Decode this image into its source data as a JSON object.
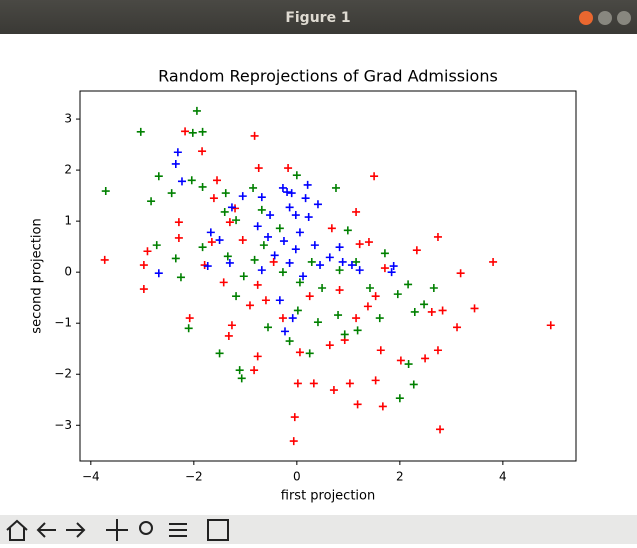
{
  "window": {
    "title": "Figure 1"
  },
  "chart_data": {
    "type": "scatter",
    "title": "Random Reprojections of Grad Admissions",
    "x_label": "first projection",
    "y_label": "second projection",
    "xlim": [
      -4.21,
      5.42
    ],
    "ylim": [
      -3.7,
      3.55
    ],
    "xticks": [
      {
        "value": -4,
        "label": "−4"
      },
      {
        "value": -2,
        "label": "−2"
      },
      0,
      2,
      4
    ],
    "yticks": [
      {
        "value": -3,
        "label": "−3"
      },
      {
        "value": -2,
        "label": "−2"
      },
      {
        "value": -1,
        "label": "−1"
      },
      0,
      1,
      2,
      3
    ],
    "series": [
      {
        "color": "#ff0000",
        "x": [
          -2.17,
          -0.82,
          -1.84,
          -0.74,
          -0.17,
          1.5,
          -1.55,
          -3.73,
          -2.97,
          -2.9,
          -2.97,
          -2.29,
          -2.29,
          2.74,
          2.33,
          3.81,
          3.18,
          4.93,
          3.11,
          3.45,
          2.83,
          2.62,
          2.74,
          2.49,
          2.02,
          1.63,
          1.53,
          1.67,
          1.18,
          1.03,
          0.72,
          -0.04,
          -0.06,
          2.78,
          0.02,
          0.33,
          -0.83,
          -0.76,
          -1.32,
          -2.08,
          -1.26,
          -1.65,
          -1.79,
          -1.3,
          -1.05,
          -0.76,
          -0.6,
          -0.27,
          0.06,
          0.64,
          0.93,
          1.15,
          1.38,
          1.53,
          1.22,
          1.15,
          0.68,
          -0.91,
          -1.42,
          -0.45,
          0.25,
          0.83,
          1.4,
          1.71,
          -1.2,
          -1.61
        ],
        "y": [
          2.76,
          2.67,
          2.37,
          2.04,
          2.04,
          1.88,
          1.8,
          0.24,
          0.14,
          0.41,
          -0.33,
          0.98,
          0.67,
          0.69,
          0.43,
          0.2,
          -0.02,
          -1.04,
          -1.08,
          -0.71,
          -0.75,
          -0.78,
          -1.53,
          -1.69,
          -1.73,
          -1.53,
          -2.12,
          -2.63,
          -2.59,
          -2.18,
          -2.31,
          -2.84,
          -3.31,
          -3.08,
          -2.18,
          -2.18,
          -1.92,
          -1.65,
          -1.25,
          -0.9,
          -1.04,
          0.59,
          0.14,
          0.98,
          0.63,
          -0.25,
          -0.55,
          -0.9,
          -1.57,
          -1.43,
          -1.33,
          -0.9,
          -0.67,
          -0.47,
          0.55,
          1.18,
          0.86,
          -0.65,
          -0.2,
          0.2,
          -0.47,
          -0.35,
          0.59,
          0.08,
          1.25,
          1.45
        ]
      },
      {
        "color": "#008000",
        "x": [
          -1.94,
          -3.03,
          -1.83,
          -2.02,
          -3.71,
          -2.68,
          -2.83,
          -2.04,
          -1.83,
          -2.43,
          -1.38,
          -2.72,
          -2.35,
          -2.25,
          -2.1,
          -1.5,
          -1.11,
          -1.07,
          0.76,
          0,
          -0.85,
          -1.4,
          2.0,
          2.27,
          2.17,
          2.29,
          2.47,
          2.66,
          2.16,
          1.96,
          1.71,
          1.15,
          1.18,
          0.93,
          0.41,
          0.25,
          -0.14,
          -0.56,
          -1.18,
          -1.03,
          -1.34,
          -0.64,
          -0.27,
          0.29,
          0.06,
          0.49,
          0.83,
          1.42,
          0.99,
          -0.33,
          -1.18,
          -0.68,
          -1.83,
          0.8,
          1.61,
          -0.82,
          0.02
        ],
        "y": [
          3.16,
          2.75,
          2.75,
          2.73,
          1.59,
          1.88,
          1.39,
          1.8,
          1.67,
          1.55,
          1.55,
          0.53,
          0.27,
          -0.1,
          -1.1,
          -1.59,
          -1.92,
          -2.08,
          1.65,
          1.9,
          1.65,
          1.18,
          -2.47,
          -2.2,
          -1.8,
          -0.78,
          -0.63,
          -0.31,
          -0.24,
          -0.43,
          0.37,
          0.2,
          -1.14,
          -1.22,
          -0.98,
          -1.59,
          -1.35,
          -1.08,
          -0.47,
          -0.08,
          0.31,
          0.53,
          0,
          0.2,
          -0.2,
          -0.31,
          0.04,
          -0.31,
          0.82,
          0.86,
          1.02,
          1.22,
          0.49,
          -0.84,
          -0.9,
          0.24,
          -0.75
        ]
      },
      {
        "color": "#0000ff",
        "x": [
          -2.31,
          -2.35,
          -2.23,
          -2.68,
          -1.73,
          -1.67,
          -1.5,
          -1.26,
          -1.05,
          -0.68,
          -0.27,
          -0.19,
          -0.1,
          0.17,
          0.41,
          0.23,
          -0.02,
          -0.52,
          -0.76,
          -0.56,
          -0.25,
          -0.02,
          0.06,
          0.35,
          0.64,
          0.89,
          1.07,
          1.22,
          1.88,
          1.84,
          -0.14,
          -0.43,
          -0.68,
          -0.33,
          -0.08,
          -0.23,
          0.12,
          0.45,
          0.83,
          -1.3,
          0.21,
          -0.14
        ],
        "y": [
          2.35,
          2.12,
          1.78,
          -0.02,
          0.12,
          0.78,
          0.63,
          1.27,
          1.49,
          1.47,
          1.65,
          1.57,
          1.55,
          1.45,
          1.33,
          1.08,
          1.12,
          1.12,
          0.9,
          0.69,
          0.61,
          0.45,
          0.78,
          0.53,
          0.29,
          0.2,
          0.14,
          0.04,
          0.12,
          0,
          0.18,
          0.33,
          0.04,
          -0.55,
          -0.9,
          -1.16,
          -0.08,
          0.14,
          0.49,
          0.18,
          1.71,
          1.27
        ]
      }
    ]
  }
}
